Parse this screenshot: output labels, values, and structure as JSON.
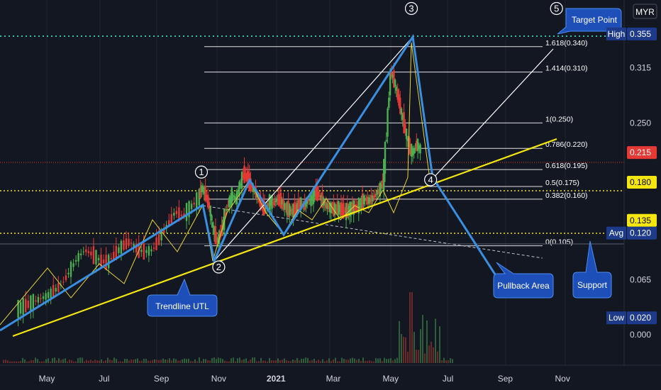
{
  "currency": "MYR",
  "chart_data": {
    "type": "line",
    "ylim": [
      -0.03,
      0.39
    ],
    "yticks": [
      "0.000",
      "0.065",
      "0.250",
      "0.315"
    ],
    "xticks": [
      {
        "label": "May",
        "x": "2020-05",
        "bold": false
      },
      {
        "label": "Jul",
        "x": "2020-07",
        "bold": false
      },
      {
        "label": "Sep",
        "x": "2020-09",
        "bold": false
      },
      {
        "label": "Nov",
        "x": "2020-11",
        "bold": false
      },
      {
        "label": "2021",
        "x": "2021-01",
        "bold": true
      },
      {
        "label": "Mar",
        "x": "2021-03",
        "bold": false
      },
      {
        "label": "May",
        "x": "2021-05",
        "bold": false
      },
      {
        "label": "Jul",
        "x": "2021-07",
        "bold": false
      },
      {
        "label": "Sep",
        "x": "2021-09",
        "bold": false
      },
      {
        "label": "Nov",
        "x": "2021-11",
        "bold": false
      }
    ],
    "price_tags": [
      {
        "prefix": "High",
        "value": "0.355",
        "color": "#1e3a8a",
        "text_color": "#ffffff"
      },
      {
        "prefix": "",
        "value": "0.215",
        "color": "#e53935",
        "text_color": "#ffffff"
      },
      {
        "prefix": "",
        "value": "0.180",
        "color": "#f5e70d",
        "text_color": "#000000"
      },
      {
        "prefix": "",
        "value": "0.135",
        "color": "#f5e70d",
        "text_color": "#000000"
      },
      {
        "prefix": "Avg",
        "value": "0.120",
        "color": "#1e3a8a",
        "text_color": "#ffffff"
      },
      {
        "prefix": "Low",
        "value": "0.020",
        "color": "#1e3a8a",
        "text_color": "#ffffff"
      }
    ],
    "price_series": [
      [
        0,
        0.03
      ],
      [
        2,
        0.034
      ],
      [
        4,
        0.038
      ],
      [
        6,
        0.042
      ],
      [
        8,
        0.046
      ],
      [
        10,
        0.052
      ],
      [
        12,
        0.06
      ],
      [
        14,
        0.075
      ],
      [
        16,
        0.09
      ],
      [
        18,
        0.1
      ],
      [
        20,
        0.095
      ],
      [
        22,
        0.088
      ],
      [
        24,
        0.085
      ],
      [
        26,
        0.095
      ],
      [
        28,
        0.105
      ],
      [
        30,
        0.11
      ],
      [
        32,
        0.1
      ],
      [
        34,
        0.098
      ],
      [
        36,
        0.1
      ],
      [
        38,
        0.115
      ],
      [
        40,
        0.13
      ],
      [
        42,
        0.145
      ],
      [
        44,
        0.14
      ],
      [
        46,
        0.15
      ],
      [
        48,
        0.16
      ],
      [
        49,
        0.175
      ],
      [
        50,
        0.165
      ],
      [
        51,
        0.15
      ],
      [
        52,
        0.125
      ],
      [
        53,
        0.11
      ],
      [
        54,
        0.12
      ],
      [
        55,
        0.14
      ],
      [
        56,
        0.155
      ],
      [
        57,
        0.165
      ],
      [
        58,
        0.16
      ],
      [
        59,
        0.175
      ],
      [
        60,
        0.19
      ],
      [
        61,
        0.185
      ],
      [
        62,
        0.175
      ],
      [
        63,
        0.17
      ],
      [
        64,
        0.16
      ],
      [
        65,
        0.15
      ],
      [
        66,
        0.15
      ],
      [
        67,
        0.158
      ],
      [
        68,
        0.155
      ],
      [
        69,
        0.16
      ],
      [
        70,
        0.158
      ],
      [
        71,
        0.15
      ],
      [
        72,
        0.148
      ],
      [
        73,
        0.145
      ],
      [
        74,
        0.15
      ],
      [
        75,
        0.155
      ],
      [
        76,
        0.152
      ],
      [
        77,
        0.158
      ],
      [
        78,
        0.16
      ],
      [
        79,
        0.168
      ],
      [
        80,
        0.165
      ],
      [
        81,
        0.158
      ],
      [
        82,
        0.152
      ],
      [
        83,
        0.15
      ],
      [
        84,
        0.148
      ],
      [
        85,
        0.15
      ],
      [
        86,
        0.148
      ],
      [
        87,
        0.145
      ],
      [
        88,
        0.148
      ],
      [
        89,
        0.15
      ],
      [
        90,
        0.15
      ],
      [
        91,
        0.155
      ],
      [
        92,
        0.16
      ],
      [
        93,
        0.158
      ],
      [
        94,
        0.16
      ],
      [
        95,
        0.165
      ],
      [
        96,
        0.17
      ],
      [
        97,
        0.18
      ],
      [
        98,
        0.24
      ],
      [
        99,
        0.31
      ],
      [
        100,
        0.3
      ],
      [
        101,
        0.28
      ],
      [
        102,
        0.26
      ],
      [
        103,
        0.24
      ],
      [
        104,
        0.22
      ],
      [
        105,
        0.215
      ],
      [
        106,
        0.225
      ],
      [
        107,
        0.218
      ]
    ],
    "series_x_start": "2020-04",
    "series_step_days": 4
  },
  "fib_levels": [
    {
      "label": "1.618(0.340)",
      "value": 0.34
    },
    {
      "label": "1.414(0.310)",
      "value": 0.31
    },
    {
      "label": "1(0.250)",
      "value": 0.25
    },
    {
      "label": "0.786(0.220)",
      "value": 0.22
    },
    {
      "label": "0.618(0.195)",
      "value": 0.195
    },
    {
      "label": "0.5(0.175)",
      "value": 0.175
    },
    {
      "label": "0.382(0.160)",
      "value": 0.16
    },
    {
      "label": "0(0.105)",
      "value": 0.105
    }
  ],
  "waves": [
    {
      "label": "1",
      "date": "2020-10-13",
      "value": 0.192
    },
    {
      "label": "2",
      "date": "2020-11-01",
      "value": 0.08
    },
    {
      "label": "3",
      "date": "2021-05-23",
      "value": 0.385
    },
    {
      "label": "4",
      "date": "2021-06-13",
      "value": 0.183
    },
    {
      "label": "5",
      "date": "2021-10-25",
      "value": 0.385
    }
  ],
  "callouts": {
    "target": "Target Point",
    "trendline": "Trendline UTL",
    "pullback": "Pullback Area",
    "support": "Support"
  }
}
